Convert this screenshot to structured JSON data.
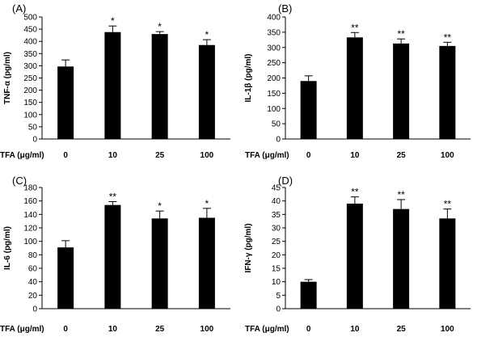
{
  "chart_data": [
    {
      "type": "bar",
      "title": "(A)",
      "xlabel": "TFA (μg/ml)",
      "ylabel": "TNF-α (pg/ml)",
      "categories": [
        "0",
        "10",
        "25",
        "100"
      ],
      "values": [
        297,
        438,
        430,
        385
      ],
      "errors": [
        27,
        25,
        10,
        22
      ],
      "significance": [
        "",
        "*",
        "*",
        "*"
      ],
      "ylim": [
        0,
        500
      ],
      "yticks": [
        0,
        50,
        100,
        150,
        200,
        250,
        300,
        350,
        400,
        450,
        500
      ],
      "bar_color": "#000000"
    },
    {
      "type": "bar",
      "title": "(B)",
      "xlabel": "TFA (μg/ml)",
      "ylabel": "IL-1β (pg/ml)",
      "categories": [
        "0",
        "10",
        "25",
        "100"
      ],
      "values": [
        190,
        333,
        313,
        305
      ],
      "errors": [
        17,
        16,
        15,
        12
      ],
      "significance": [
        "",
        "**",
        "**",
        "**"
      ],
      "ylim": [
        0,
        400
      ],
      "yticks": [
        0,
        50,
        100,
        150,
        200,
        250,
        300,
        350,
        400
      ],
      "bar_color": "#000000"
    },
    {
      "type": "bar",
      "title": "(C)",
      "xlabel": "TFA (μg/ml)",
      "ylabel": "IL-6 (pg/ml)",
      "categories": [
        "0",
        "10",
        "25",
        "100"
      ],
      "values": [
        91,
        154,
        134,
        135
      ],
      "errors": [
        10,
        5,
        11,
        14
      ],
      "significance": [
        "",
        "**",
        "*",
        "*"
      ],
      "ylim": [
        0,
        180
      ],
      "yticks": [
        0,
        20,
        40,
        60,
        80,
        100,
        120,
        140,
        160,
        180
      ],
      "bar_color": "#000000"
    },
    {
      "type": "bar",
      "title": "(D)",
      "xlabel": "TFA (μg/ml)",
      "ylabel": "IFN-γ (pg/ml)",
      "categories": [
        "0",
        "10",
        "25",
        "100"
      ],
      "values": [
        10,
        39,
        37,
        33.5
      ],
      "errors": [
        0.8,
        2.5,
        3.5,
        3.5
      ],
      "significance": [
        "",
        "**",
        "**",
        "**"
      ],
      "ylim": [
        0,
        45
      ],
      "yticks": [
        0,
        5,
        10,
        15,
        20,
        25,
        30,
        35,
        40,
        45
      ],
      "bar_color": "#000000"
    }
  ]
}
